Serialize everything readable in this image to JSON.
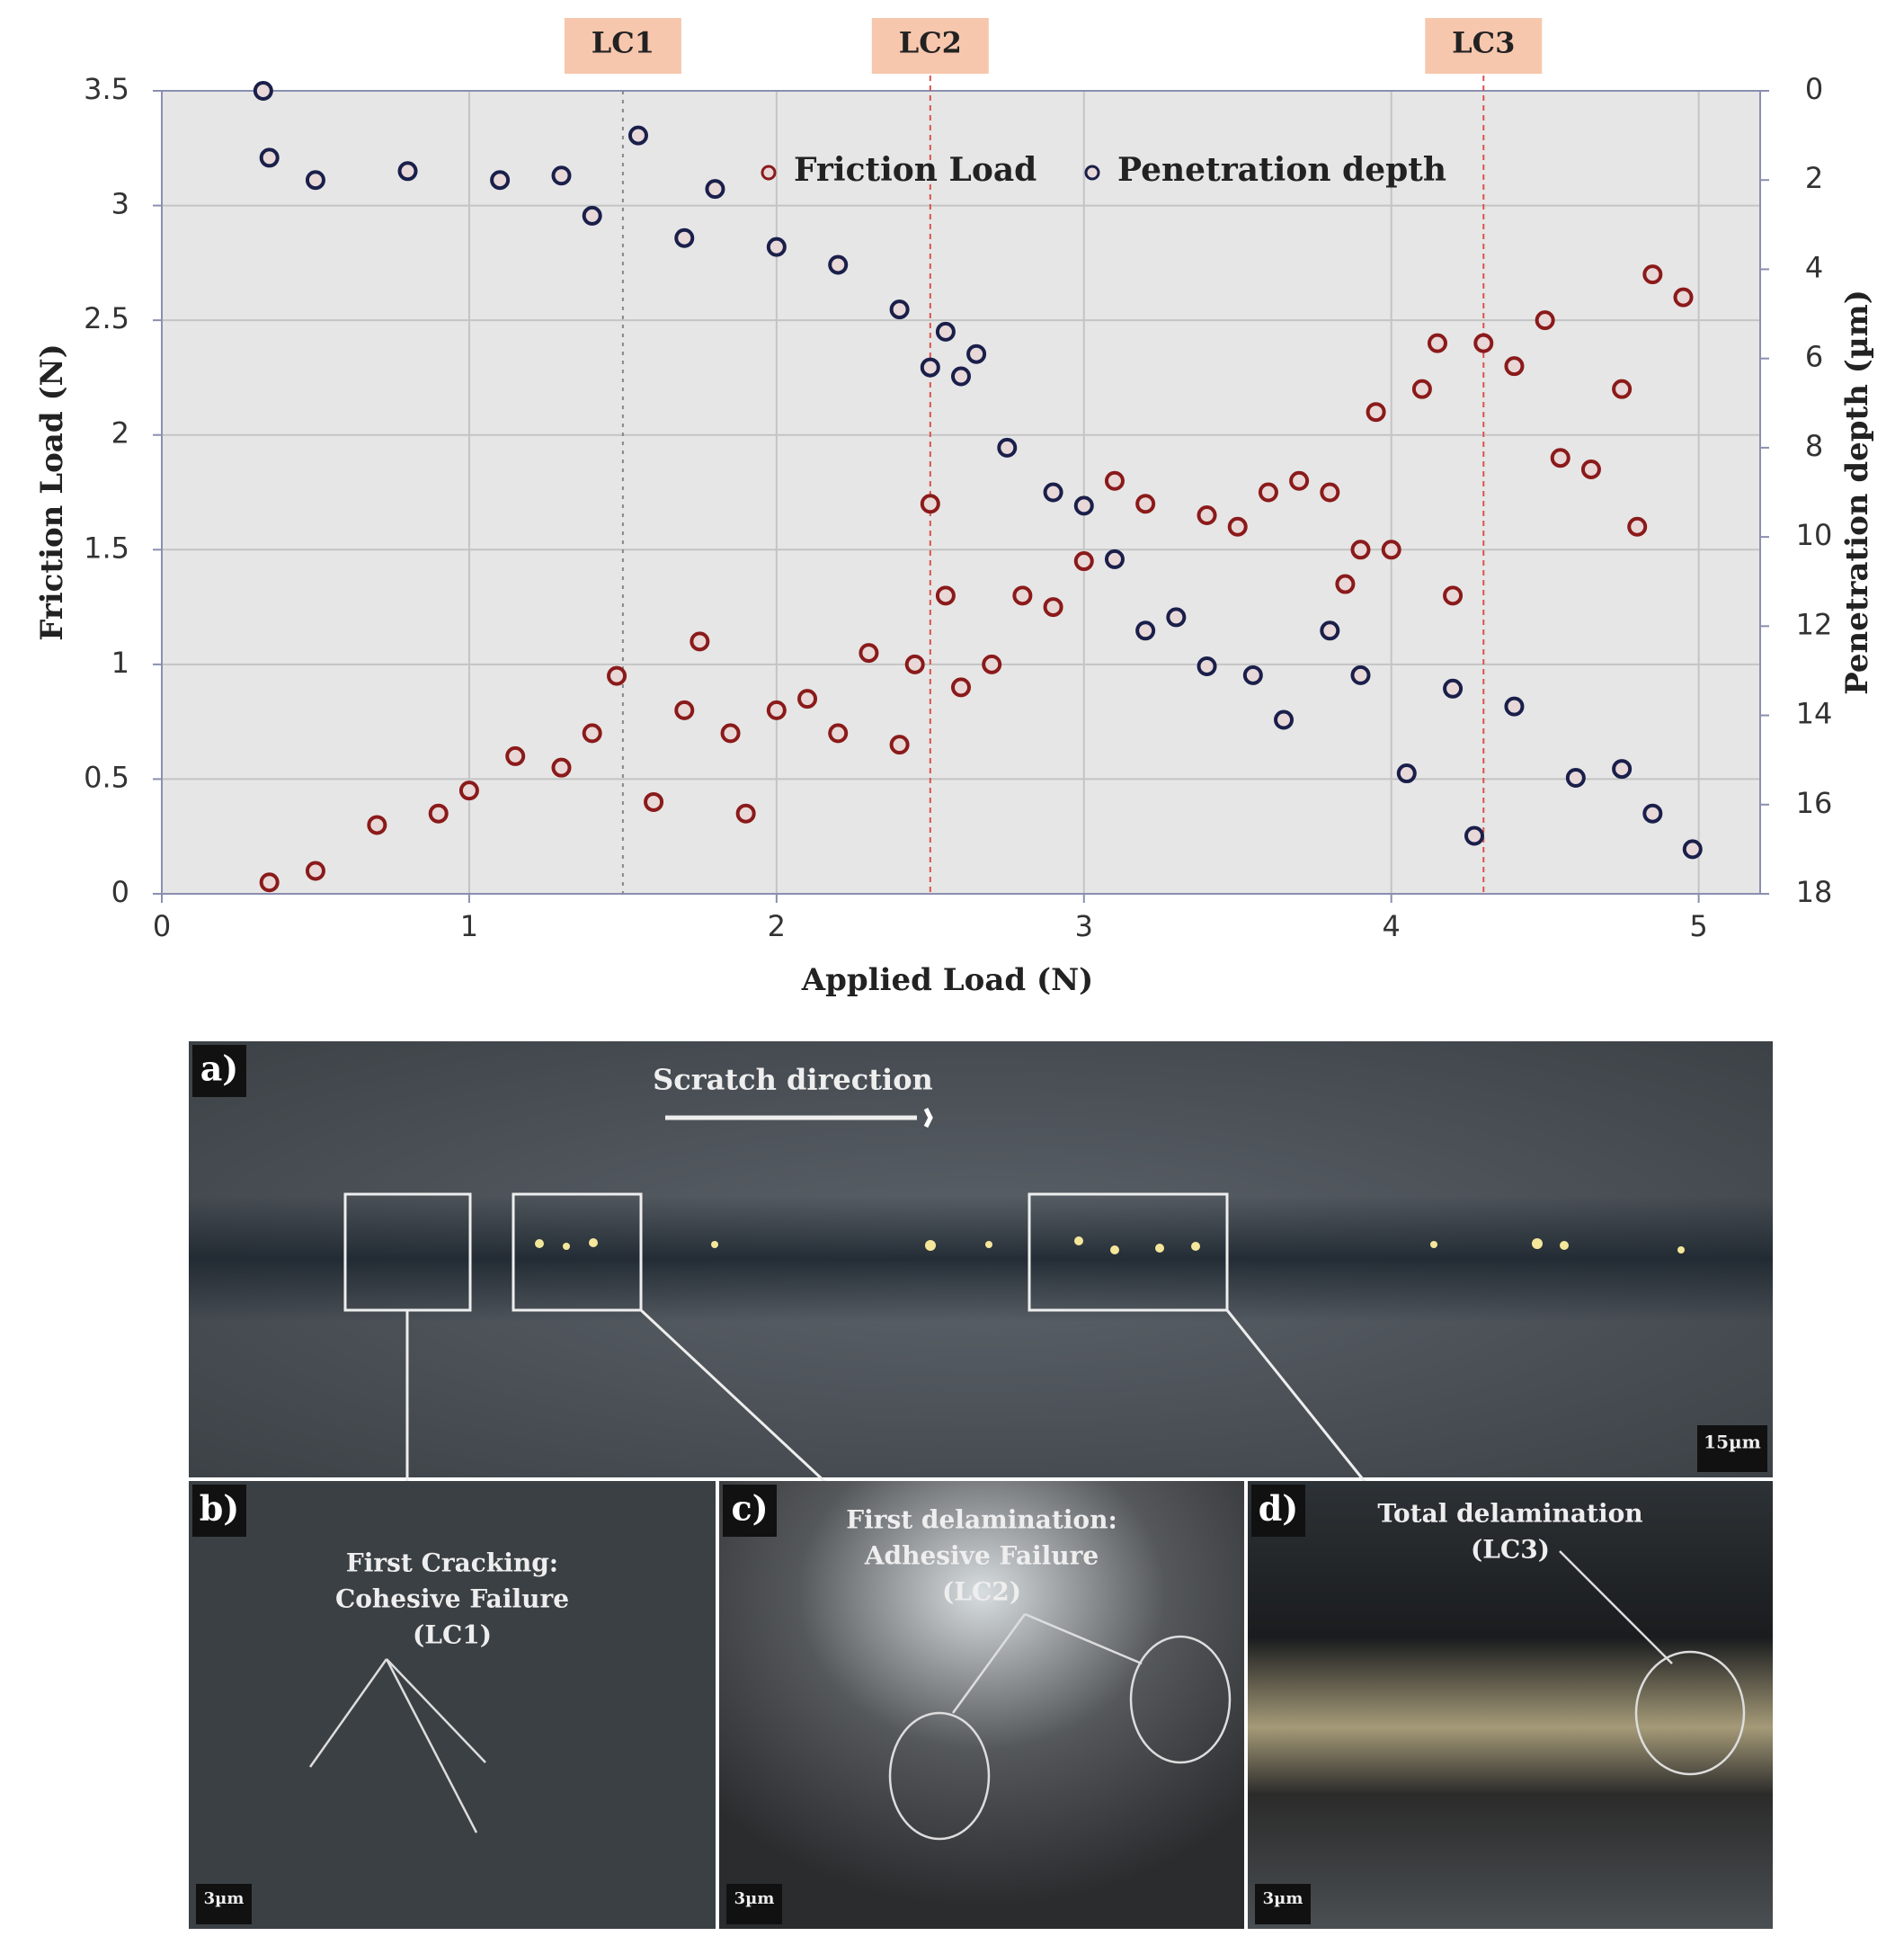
{
  "chart_data": {
    "type": "scatter",
    "xlabel": "Applied Load (N)",
    "ylabel": "Friction Load (N)",
    "y2label": "Penetration depth (µm)",
    "xlim": [
      0,
      5.2
    ],
    "xticks": [
      0,
      1,
      2,
      3,
      4,
      5
    ],
    "ylim": [
      0,
      3.5
    ],
    "yticks": [
      0,
      0.5,
      1,
      1.5,
      2,
      2.5,
      3,
      3.5
    ],
    "y2lim": [
      18,
      0
    ],
    "y2ticks": [
      0,
      2,
      4,
      6,
      8,
      10,
      12,
      14,
      16,
      18
    ],
    "grid": true,
    "legend": "upper center",
    "annotations": [
      {
        "label": "LC1",
        "x": 1.5
      },
      {
        "label": "LC2",
        "x": 2.5
      },
      {
        "label": "LC3",
        "x": 4.3
      }
    ],
    "series": [
      {
        "name": "Friction Load",
        "color": "#8b1a1a",
        "x": [
          0.35,
          0.5,
          0.7,
          0.9,
          1.0,
          1.15,
          1.3,
          1.4,
          1.48,
          1.6,
          1.7,
          1.75,
          1.85,
          1.9,
          2.0,
          2.1,
          2.2,
          2.3,
          2.4,
          2.45,
          2.5,
          2.55,
          2.6,
          2.7,
          2.8,
          2.9,
          3.0,
          3.1,
          3.2,
          3.4,
          3.5,
          3.6,
          3.7,
          3.8,
          3.85,
          3.9,
          3.95,
          4.0,
          4.1,
          4.15,
          4.2,
          4.3,
          4.4,
          4.5,
          4.55,
          4.65,
          4.75,
          4.8,
          4.85,
          4.95
        ],
        "values": [
          0.05,
          0.1,
          0.3,
          0.35,
          0.45,
          0.6,
          0.55,
          0.7,
          0.95,
          0.4,
          0.8,
          1.1,
          0.7,
          0.35,
          0.8,
          0.85,
          0.7,
          1.05,
          0.65,
          1.0,
          1.7,
          1.3,
          0.9,
          1.0,
          1.3,
          1.25,
          1.45,
          1.8,
          1.7,
          1.65,
          1.6,
          1.75,
          1.8,
          1.75,
          1.35,
          1.5,
          2.1,
          1.5,
          2.2,
          2.4,
          1.3,
          2.4,
          2.3,
          2.5,
          1.9,
          1.85,
          2.2,
          1.6,
          2.7,
          2.6
        ]
      },
      {
        "name": "Penetration depth",
        "color": "#1a1f4a",
        "axis": "y2",
        "x": [
          0.33,
          0.35,
          0.5,
          0.8,
          1.1,
          1.3,
          1.4,
          1.55,
          1.7,
          1.8,
          2.0,
          2.2,
          2.4,
          2.5,
          2.55,
          2.6,
          2.65,
          2.75,
          2.9,
          3.0,
          3.1,
          3.2,
          3.3,
          3.4,
          3.55,
          3.65,
          3.8,
          3.9,
          4.05,
          4.2,
          4.27,
          4.4,
          4.6,
          4.75,
          4.85,
          4.98
        ],
        "values": [
          0,
          1.5,
          2.0,
          1.8,
          2.0,
          1.9,
          2.8,
          1.0,
          3.3,
          2.2,
          3.5,
          3.9,
          4.9,
          6.2,
          5.4,
          6.4,
          5.9,
          8.0,
          9.0,
          9.3,
          10.5,
          12.1,
          11.8,
          12.9,
          13.1,
          14.1,
          12.1,
          13.1,
          15.3,
          13.4,
          16.7,
          13.8,
          15.4,
          15.2,
          16.2,
          17.0
        ]
      }
    ]
  },
  "panels": {
    "a": {
      "tag": "a)",
      "direction": "Scratch direction",
      "scale": "15µm"
    },
    "b": {
      "tag": "b)",
      "lines": [
        "First Cracking:",
        "Cohesive Failure",
        "(LC1)"
      ],
      "scale": "3µm"
    },
    "c": {
      "tag": "c)",
      "lines": [
        "First delamination:",
        "Adhesive Failure",
        "(LC2)"
      ],
      "scale": "3µm"
    },
    "d": {
      "tag": "d)",
      "lines": [
        "Total delamination",
        "(LC3)"
      ],
      "scale": "3µm"
    }
  }
}
